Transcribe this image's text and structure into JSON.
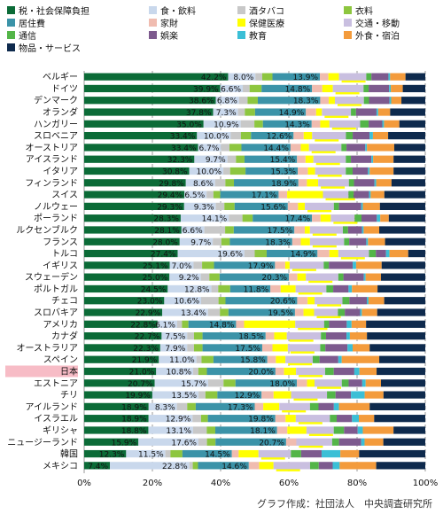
{
  "chart_data": {
    "type": "bar",
    "orientation": "horizontal",
    "stacked": "percent",
    "xlim": [
      0,
      100
    ],
    "x_ticks": [
      "0%",
      "20%",
      "40%",
      "60%",
      "80%",
      "100%"
    ],
    "legend_position": "top",
    "legend": [
      {
        "name": "税・社会保障負担",
        "color": "#0b6b37"
      },
      {
        "name": "食・飲料",
        "color": "#c9d8ec"
      },
      {
        "name": "酒タバコ",
        "color": "#c8c8c8"
      },
      {
        "name": "衣料",
        "color": "#8dc63f"
      },
      {
        "name": "居住費",
        "color": "#3b93a8"
      },
      {
        "name": "家財",
        "color": "#f0bcb0"
      },
      {
        "name": "保健医療",
        "color": "#ffff00"
      },
      {
        "name": "交通・移動",
        "color": "#c9bfe0"
      },
      {
        "name": "通信",
        "color": "#53b548"
      },
      {
        "name": "娯楽",
        "color": "#7d5a8e"
      },
      {
        "name": "教育",
        "color": "#3bbfd6"
      },
      {
        "name": "外食・宿泊",
        "color": "#f39b3c"
      },
      {
        "name": "物品・サービス",
        "color": "#0e2a4d"
      }
    ],
    "categories": [
      "ベルギー",
      "ドイツ",
      "デンマーク",
      "オランダ",
      "ハンガリー",
      "スロベニア",
      "オーストリア",
      "アイスランド",
      "イタリア",
      "フィンランド",
      "スイス",
      "ノルウェー",
      "ポーランド",
      "ルクセンブルク",
      "フランス",
      "トルコ",
      "イギリス",
      "スウェーデン",
      "ポルトガル",
      "チェコ",
      "スロバキア",
      "アメリカ",
      "カナダ",
      "オーストラリア",
      "スペイン",
      "日本",
      "エストニア",
      "チリ",
      "アイルランド",
      "イスラエル",
      "ギリシャ",
      "ニュージーランド",
      "韓国",
      "メキシコ"
    ],
    "highlight_category": "日本",
    "series": [
      {
        "name": "税・社会保障負担",
        "values": [
          42.2,
          39.9,
          38.6,
          37.8,
          35.0,
          33.4,
          33.4,
          32.3,
          30.8,
          29.8,
          29.4,
          29.3,
          28.3,
          28.1,
          28.0,
          27.4,
          25.1,
          25.0,
          24.5,
          23.0,
          22.9,
          22.8,
          22.7,
          22.3,
          21.9,
          21.0,
          20.7,
          19.9,
          18.9,
          18.9,
          18.8,
          15.9,
          12.3,
          7.4
        ]
      },
      {
        "name": "食・飲料",
        "values": [
          8.0,
          6.6,
          6.8,
          7.3,
          10.9,
          10.0,
          6.7,
          9.7,
          10.0,
          8.6,
          6.5,
          9.3,
          14.1,
          6.6,
          9.7,
          19.6,
          7.0,
          9.2,
          12.8,
          10.6,
          13.4,
          6.1,
          7.5,
          7.9,
          11.0,
          10.8,
          15.7,
          13.5,
          8.3,
          12.9,
          13.1,
          17.6,
          11.5,
          22.8
        ]
      },
      {
        "name": "酒タバコ",
        "values": [
          2.0,
          2.0,
          2.5,
          2.0,
          4.0,
          3.0,
          2.5,
          2.5,
          2.0,
          3.0,
          2.0,
          2.5,
          4.0,
          6.0,
          2.5,
          3.0,
          2.5,
          2.5,
          2.0,
          5.0,
          3.5,
          1.5,
          2.0,
          2.0,
          1.5,
          1.5,
          4.5,
          2.0,
          3.0,
          2.5,
          4.0,
          2.5,
          1.5,
          1.0
        ]
      },
      {
        "name": "衣料",
        "values": [
          3.0,
          3.5,
          3.0,
          3.0,
          2.5,
          3.0,
          3.5,
          2.5,
          4.5,
          2.5,
          2.0,
          3.0,
          3.0,
          2.5,
          2.5,
          3.5,
          3.5,
          3.0,
          3.5,
          2.0,
          2.5,
          2.0,
          2.5,
          2.5,
          3.5,
          2.5,
          3.5,
          3.5,
          2.5,
          2.0,
          2.5,
          2.5,
          3.5,
          1.5
        ]
      },
      {
        "name": "居住費",
        "values": [
          13.9,
          14.8,
          18.3,
          14.9,
          14.3,
          12.6,
          14.4,
          15.4,
          15.3,
          18.9,
          17.1,
          15.6,
          17.4,
          17.5,
          18.3,
          14.9,
          17.9,
          20.3,
          11.8,
          20.6,
          19.5,
          14.8,
          18.5,
          17.5,
          15.8,
          20.0,
          18.0,
          12.9,
          17.3,
          19.8,
          18.1,
          20.7,
          14.5,
          14.6
        ]
      },
      {
        "name": "家財",
        "values": [
          2.5,
          3.0,
          2.5,
          3.0,
          2.5,
          3.0,
          3.0,
          2.5,
          3.0,
          2.5,
          2.5,
          3.0,
          2.5,
          3.0,
          2.5,
          3.5,
          3.0,
          2.5,
          3.0,
          3.0,
          2.5,
          2.5,
          2.5,
          3.0,
          2.5,
          2.5,
          3.0,
          3.5,
          2.5,
          3.0,
          3.0,
          3.0,
          2.0,
          3.0
        ]
      },
      {
        "name": "保健医療",
        "values": [
          3.1,
          3.1,
          1.8,
          1.7,
          2.7,
          2.5,
          2.4,
          2.3,
          2.1,
          3.3,
          10.5,
          2.0,
          3.0,
          1.5,
          2.7,
          2.6,
          1.3,
          2.5,
          4.4,
          2.0,
          3.1,
          15.9,
          3.7,
          4.5,
          2.8,
          3.5,
          2.2,
          5.1,
          4.7,
          3.0,
          5.6,
          0.0,
          5.8,
          4.1
        ]
      },
      {
        "name": "交通・移動",
        "values": [
          8.0,
          9.0,
          8.5,
          8.5,
          9.0,
          10.0,
          9.5,
          9.5,
          9.0,
          9.0,
          7.5,
          8.5,
          7.0,
          9.5,
          10.0,
          9.0,
          10.0,
          9.5,
          9.0,
          8.0,
          7.0,
          9.0,
          10.0,
          9.5,
          8.0,
          8.5,
          8.0,
          10.5,
          9.0,
          10.0,
          8.0,
          10.5,
          9.5,
          10.5
        ]
      },
      {
        "name": "通信",
        "values": [
          1.5,
          1.5,
          1.5,
          1.5,
          2.5,
          2.0,
          1.5,
          1.5,
          2.0,
          1.5,
          1.5,
          1.5,
          2.0,
          1.5,
          1.5,
          2.0,
          1.5,
          1.5,
          2.0,
          2.0,
          2.0,
          1.5,
          1.5,
          1.5,
          2.0,
          2.5,
          2.0,
          2.5,
          2.5,
          2.0,
          3.0,
          2.0,
          3.0,
          2.5
        ]
      },
      {
        "name": "娯楽",
        "values": [
          5.0,
          6.0,
          6.0,
          6.0,
          4.0,
          5.0,
          5.5,
          6.0,
          4.5,
          6.0,
          4.5,
          6.5,
          4.5,
          4.0,
          5.0,
          3.0,
          7.0,
          6.0,
          4.5,
          5.0,
          4.5,
          5.5,
          6.0,
          6.5,
          5.5,
          6.0,
          4.0,
          4.5,
          4.5,
          4.5,
          4.0,
          6.5,
          6.0,
          4.0
        ]
      },
      {
        "name": "教育",
        "values": [
          0.5,
          0.5,
          0.5,
          0.5,
          0.5,
          1.0,
          0.5,
          0.5,
          0.5,
          0.5,
          0.5,
          0.5,
          1.0,
          0.5,
          0.5,
          1.0,
          1.0,
          0.5,
          1.0,
          0.5,
          0.5,
          1.5,
          1.0,
          1.5,
          1.0,
          1.5,
          1.0,
          4.0,
          1.5,
          2.0,
          1.5,
          1.0,
          5.5,
          2.0
        ]
      },
      {
        "name": "外食・宿泊",
        "values": [
          4.5,
          3.5,
          3.0,
          3.5,
          4.5,
          4.5,
          8.0,
          6.0,
          7.0,
          4.5,
          4.0,
          5.0,
          2.5,
          4.5,
          5.0,
          5.5,
          7.5,
          4.5,
          7.5,
          4.5,
          4.5,
          4.5,
          5.0,
          5.0,
          11.0,
          5.0,
          4.5,
          5.5,
          9.0,
          4.5,
          9.0,
          5.5,
          5.5,
          10.5
        ]
      },
      {
        "name": "物品・サービス",
        "values": [
          5.8,
          6.6,
          7.0,
          10.3,
          7.6,
          11.0,
          9.1,
          9.3,
          9.3,
          9.9,
          12.0,
          13.3,
          10.7,
          13.3,
          11.8,
          5.0,
          12.8,
          13.0,
          14.0,
          11.8,
          14.1,
          18.4,
          17.1,
          16.3,
          13.5,
          14.2,
          13.0,
          12.2,
          16.3,
          15.0,
          9.3,
          12.3,
          19.4,
          14.1
        ]
      }
    ],
    "labeled_series": [
      "税・社会保障負担",
      "食・飲料",
      "居住費",
      "保健医療"
    ],
    "source": "グラフ作成：社団法人　中央調査研究所"
  }
}
